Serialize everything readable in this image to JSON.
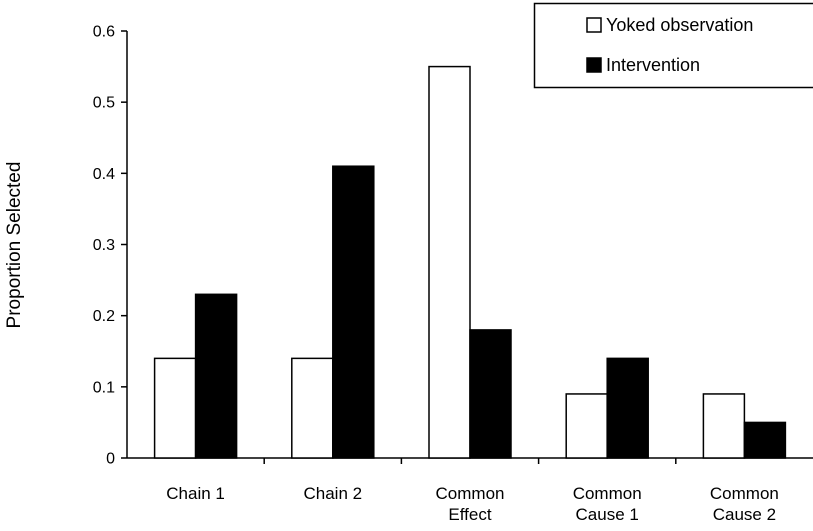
{
  "chart_data": {
    "type": "bar",
    "title": "",
    "xlabel": "",
    "ylabel": "Proportion Selected",
    "ylim": [
      0,
      0.6
    ],
    "yticks": [
      "0",
      "0.1",
      "0.2",
      "0.3",
      "0.4",
      "0.5",
      "0.6"
    ],
    "categories": [
      [
        "Chain 1"
      ],
      [
        "Chain 2"
      ],
      [
        "Common",
        "Effect"
      ],
      [
        "Common",
        "Cause 1"
      ],
      [
        "Common",
        "Cause 2"
      ]
    ],
    "series": [
      {
        "name": "Yoked observation",
        "color": "#ffffff",
        "values": [
          0.14,
          0.14,
          0.55,
          0.09,
          0.09
        ]
      },
      {
        "name": "Intervention",
        "color": "#000000",
        "values": [
          0.23,
          0.41,
          0.18,
          0.14,
          0.05
        ]
      }
    ],
    "grid": false,
    "legend_position": "top-right"
  }
}
